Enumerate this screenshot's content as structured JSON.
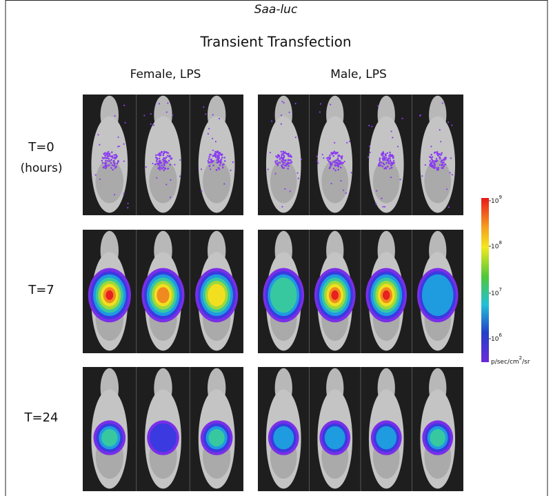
{
  "header": {
    "title": "Saa-luc",
    "subtitle": "Transient Transfection"
  },
  "columns": [
    "Female, LPS",
    "Male, LPS"
  ],
  "rows": [
    {
      "label": "T=0",
      "sublabel": "(hours)"
    },
    {
      "label": "T=7"
    },
    {
      "label": "T=24"
    }
  ],
  "colorbar": {
    "ticks": [
      {
        "base": "10",
        "exponent": "9"
      },
      {
        "base": "10",
        "exponent": "8"
      },
      {
        "base": "10",
        "exponent": "7"
      },
      {
        "base": "10",
        "exponent": "6"
      }
    ],
    "unit": {
      "before": "p/sec/cm",
      "exponent": "2",
      "after": "/sr"
    }
  }
}
